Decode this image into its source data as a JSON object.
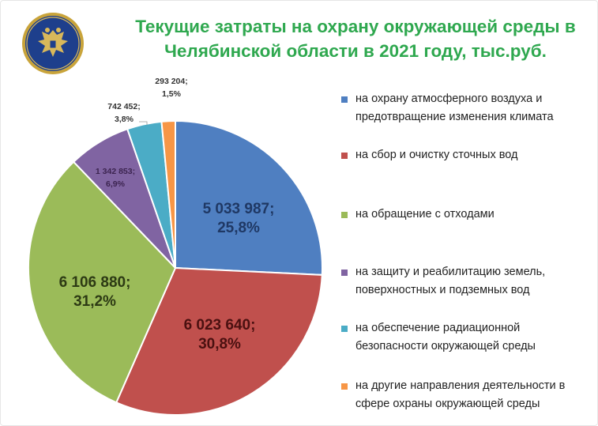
{
  "title": {
    "line1": "Текущие затраты на охрану окружающей среды в",
    "line2": "Челябинской области в 2021 году, тыс.руб."
  },
  "logo": {
    "icon": "double-headed-eagle-emblem",
    "bg_color": "#1e3f8c",
    "ring_color": "#c9a43b"
  },
  "chart_data": {
    "type": "pie",
    "title": "Текущие затраты на охрану окружающей среды в Челябинской области в 2021 году, тыс.руб.",
    "unit": "тыс.руб.",
    "legend_position": "right",
    "slices": [
      {
        "name": "на охрану атмосферного воздуха и предотвращение изменения климата",
        "legend_lines": [
          "на охрану атмосферного воздуха и",
          "предотвращение изменения климата"
        ],
        "value": 5033987,
        "value_label": "5 033 987;",
        "percent_label": "25,8%",
        "color": "#4f7fc1"
      },
      {
        "name": "на сбор и очистку сточных вод",
        "legend_lines": [
          "на сбор и очистку сточных вод"
        ],
        "value": 6023640,
        "value_label": "6 023 640;",
        "percent_label": "30,8%",
        "color": "#c0504d"
      },
      {
        "name": "на обращение с отходами",
        "legend_lines": [
          "на обращение с отходами"
        ],
        "value": 6106880,
        "value_label": "6 106 880;",
        "percent_label": "31,2%",
        "color": "#9bbb59"
      },
      {
        "name": "на защиту и реабилитацию земель, поверхностных и подземных вод",
        "legend_lines": [
          "на защиту и реабилитацию земель,",
          "поверхностных и подземных вод"
        ],
        "value": 1342853,
        "value_label": "1 342 853;",
        "percent_label": "6,9%",
        "color": "#8064a2"
      },
      {
        "name": "на обеспечение радиационной безопасности окружающей среды",
        "legend_lines": [
          "на обеспечение радиационной",
          "безопасности окружающей среды"
        ],
        "value": 742452,
        "value_label": "742 452;",
        "percent_label": "3,8%",
        "color": "#4bacc6"
      },
      {
        "name": "на другие направления деятельности в сфере охраны окружающей среды",
        "legend_lines": [
          "на другие направления деятельности в",
          "сфере охраны окружающей среды"
        ],
        "value": 293204,
        "value_label": "293 204;",
        "percent_label": "1,5%",
        "color": "#f79646"
      }
    ]
  }
}
